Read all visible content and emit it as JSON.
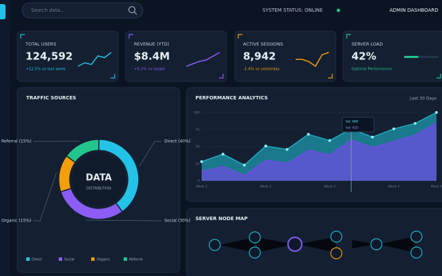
{
  "header": {
    "search_placeholder": "Search data...",
    "status": "SYSTEM STATUS: ONLINE",
    "title": "ADMIN DASHBOARD"
  },
  "kpis": [
    {
      "label": "TOTAL USERS",
      "value": "124,592",
      "change": "+12.5% vs last week",
      "color": "#22c3e6",
      "spark": [
        3,
        4,
        3.5,
        6,
        5.5,
        7
      ]
    },
    {
      "label": "REVENUE (YTD)",
      "value": "$8.4M",
      "change": "+5.2% vs target",
      "color": "#8b5cf6",
      "spark": [
        2,
        3,
        4,
        4.5,
        6,
        7.5
      ]
    },
    {
      "label": "ACTIVE SESSIONS",
      "value": "8,942",
      "change": "-1.4% vs yesterday",
      "color": "#f59e0b",
      "spark": [
        5,
        5,
        4.5,
        3.5,
        6,
        6.5
      ]
    },
    {
      "label": "SERVER LOAD",
      "value": "42%",
      "change": "Optimal Performance",
      "color": "#22c58b",
      "gauge": 42
    }
  ],
  "chart_data": [
    {
      "type": "pie",
      "donut": true,
      "title": "TRAFFIC SOURCES",
      "center_title": "DATA",
      "center_subtitle": "DISTRIBUTION",
      "categories": [
        "Direct",
        "Social",
        "Organic",
        "Referral"
      ],
      "values": [
        40,
        30,
        15,
        15
      ],
      "value_labels": [
        "Direct (40%)",
        "Social (30%)",
        "Organic (15%)",
        "Referral (15%)"
      ],
      "colors": [
        "#22c3e6",
        "#8b5cf6",
        "#f59e0b",
        "#22c58b"
      ]
    },
    {
      "type": "area",
      "title": "PERFORMANCE ANALYTICS",
      "subtitle": "Last 30 Days",
      "categories": [
        "Week 1",
        null,
        null,
        "Week 2",
        null,
        null,
        "Week 3",
        null,
        null,
        "Week 4",
        null,
        "Week 5"
      ],
      "series": [
        {
          "color": "#1fb5c9",
          "values": [
            28,
            39,
            23,
            51,
            46,
            68,
            59,
            76,
            64,
            76,
            84,
            100
          ]
        },
        {
          "color": "#6b4fe0",
          "values": [
            14,
            21,
            8,
            30,
            26,
            45,
            38,
            60,
            49,
            58,
            67,
            85
          ]
        }
      ],
      "ylim": [
        0,
        100
      ],
      "yticks": [
        0,
        25,
        50,
        75,
        100
      ],
      "annotations": [
        "Val: 680",
        "Val: 420"
      ]
    }
  ],
  "node_map": {
    "title": "SERVER NODE MAP"
  }
}
